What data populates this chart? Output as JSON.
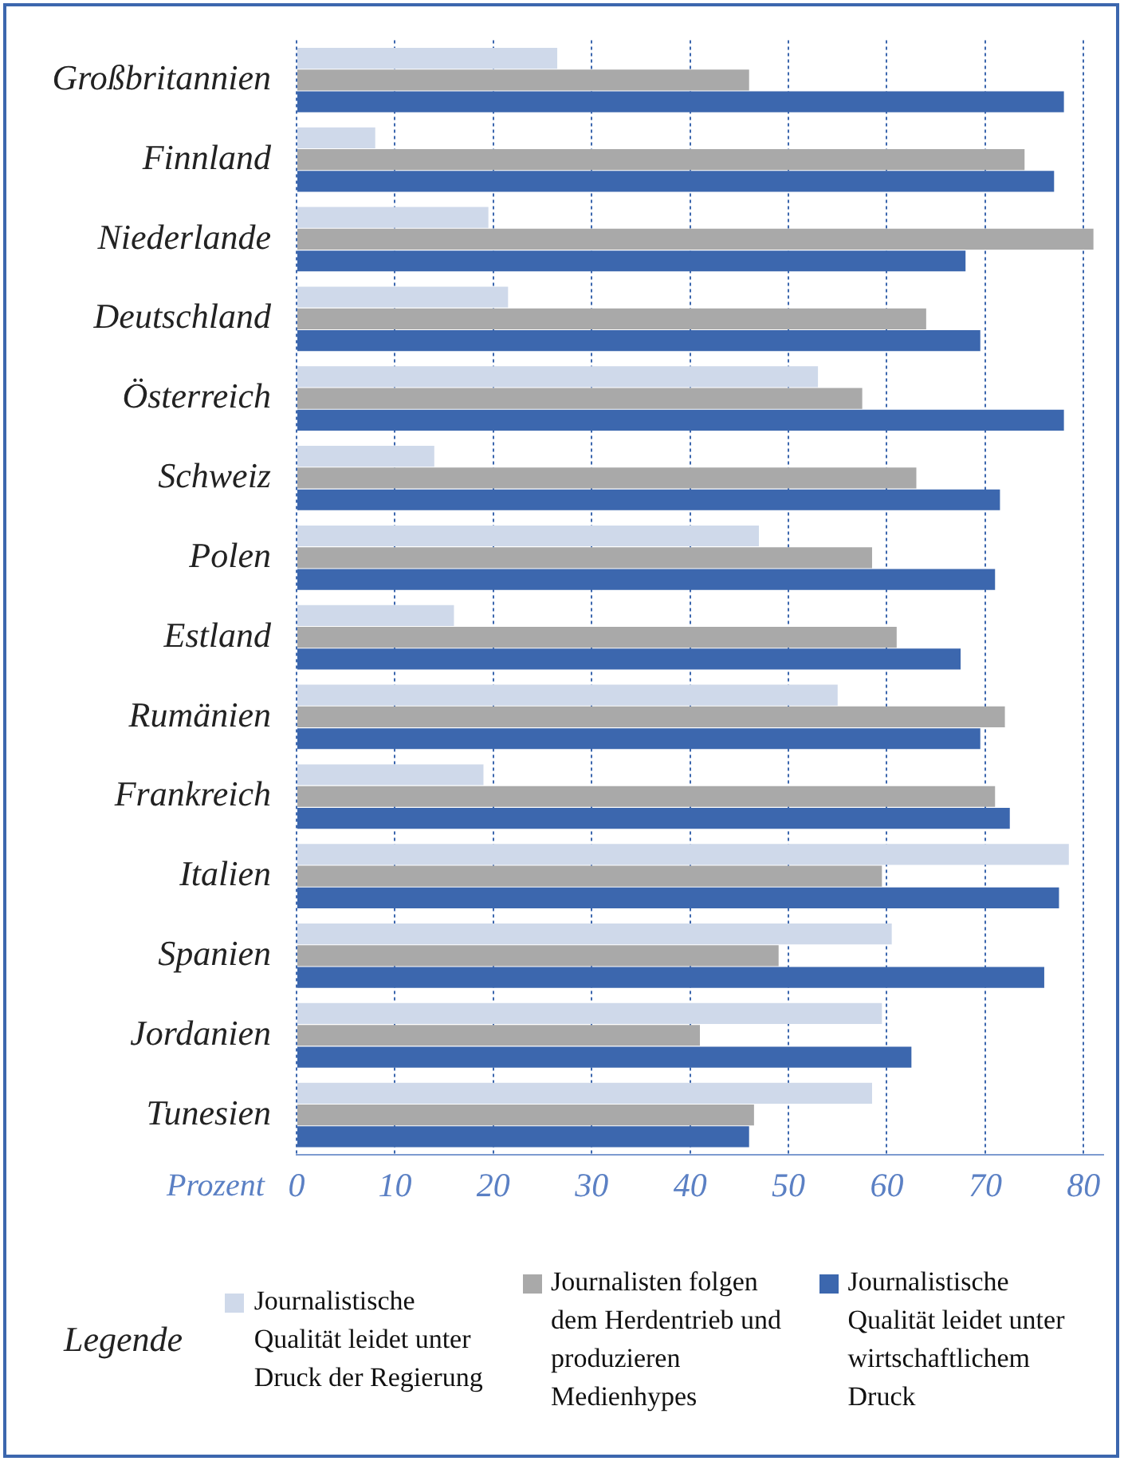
{
  "chart_data": {
    "type": "bar",
    "orientation": "horizontal",
    "xlabel": "Prozent",
    "legend_title": "Legende",
    "categories": [
      "Großbritannien",
      "Finnland",
      "Niederlande",
      "Deutschland",
      "Österreich",
      "Schweiz",
      "Polen",
      "Estland",
      "Rumänien",
      "Frankreich",
      "Italien",
      "Spanien",
      "Jordanien",
      "Tunesien"
    ],
    "series": [
      {
        "name": "Journalistische Qualität leidet unter Druck der Regierung",
        "color": "#cfd9ea",
        "values": [
          26.5,
          8,
          19.5,
          21.5,
          53,
          14,
          47,
          16,
          55,
          19,
          78.5,
          60.5,
          59.5,
          58.5
        ]
      },
      {
        "name": "Journalisten folgen dem Herdentrieb und produzieren Medienhypes",
        "color": "#a9a9a9",
        "values": [
          46,
          74,
          81,
          64,
          57.5,
          63,
          58.5,
          61,
          72,
          71,
          59.5,
          49,
          41,
          46.5
        ]
      },
      {
        "name": "Journalistische Qualität leidet unter wirtschaftlichem Druck",
        "color": "#3c67ae",
        "values": [
          78,
          77,
          68,
          69.5,
          78,
          71.5,
          71,
          67.5,
          69.5,
          72.5,
          77.5,
          76,
          62.5,
          46
        ]
      }
    ],
    "xlim": [
      0,
      82
    ],
    "xticks": [
      0,
      10,
      20,
      30,
      40,
      50,
      60,
      70,
      80
    ],
    "grid": "x",
    "legend": "bottom"
  }
}
